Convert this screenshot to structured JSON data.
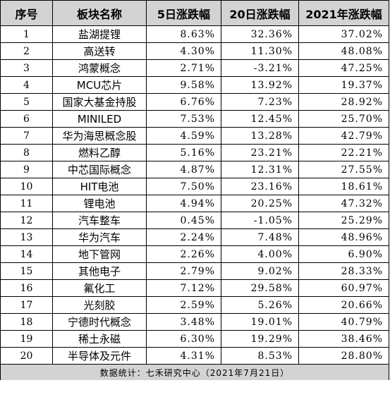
{
  "headers": [
    "序号",
    "板块名称",
    "5日涨跌幅",
    "20日涨跌幅",
    "2021年涨跌幅"
  ],
  "rows": [
    {
      "idx": "1",
      "name": "盐湖提锂",
      "d5": "8.63%",
      "d20": "32.36%",
      "ytd": "37.02%"
    },
    {
      "idx": "2",
      "name": "高送转",
      "d5": "4.30%",
      "d20": "11.30%",
      "ytd": "48.08%"
    },
    {
      "idx": "3",
      "name": "鸿蒙概念",
      "d5": "2.71%",
      "d20": "-3.21%",
      "ytd": "47.25%"
    },
    {
      "idx": "4",
      "name": "MCU芯片",
      "d5": "9.58%",
      "d20": "13.92%",
      "ytd": "19.37%"
    },
    {
      "idx": "5",
      "name": "国家大基金持股",
      "d5": "6.76%",
      "d20": "7.23%",
      "ytd": "28.92%"
    },
    {
      "idx": "6",
      "name": "MINILED",
      "d5": "7.53%",
      "d20": "12.45%",
      "ytd": "25.70%"
    },
    {
      "idx": "7",
      "name": "华为海思概念股",
      "d5": "4.59%",
      "d20": "13.28%",
      "ytd": "42.79%"
    },
    {
      "idx": "8",
      "name": "燃料乙醇",
      "d5": "5.16%",
      "d20": "23.21%",
      "ytd": "22.21%"
    },
    {
      "idx": "9",
      "name": "中芯国际概念",
      "d5": "4.87%",
      "d20": "12.31%",
      "ytd": "27.55%"
    },
    {
      "idx": "10",
      "name": "HIT电池",
      "d5": "7.50%",
      "d20": "23.16%",
      "ytd": "18.61%"
    },
    {
      "idx": "11",
      "name": "锂电池",
      "d5": "4.94%",
      "d20": "20.25%",
      "ytd": "47.32%"
    },
    {
      "idx": "12",
      "name": "汽车整车",
      "d5": "0.45%",
      "d20": "-1.05%",
      "ytd": "25.29%"
    },
    {
      "idx": "13",
      "name": "华为汽车",
      "d5": "2.24%",
      "d20": "7.48%",
      "ytd": "48.96%"
    },
    {
      "idx": "14",
      "name": "地下管网",
      "d5": "2.26%",
      "d20": "4.00%",
      "ytd": "6.90%"
    },
    {
      "idx": "15",
      "name": "其他电子",
      "d5": "2.79%",
      "d20": "9.02%",
      "ytd": "28.33%"
    },
    {
      "idx": "16",
      "name": "氟化工",
      "d5": "7.12%",
      "d20": "29.58%",
      "ytd": "60.97%"
    },
    {
      "idx": "17",
      "name": "光刻胶",
      "d5": "2.59%",
      "d20": "5.26%",
      "ytd": "20.66%"
    },
    {
      "idx": "18",
      "name": "宁德时代概念",
      "d5": "3.48%",
      "d20": "19.01%",
      "ytd": "40.79%"
    },
    {
      "idx": "19",
      "name": "稀土永磁",
      "d5": "6.30%",
      "d20": "19.29%",
      "ytd": "38.46%"
    },
    {
      "idx": "20",
      "name": "半导体及元件",
      "d5": "4.31%",
      "d20": "8.53%",
      "ytd": "28.80%"
    }
  ],
  "footer": "数据统计：七禾研究中心（2021年7月21日）"
}
